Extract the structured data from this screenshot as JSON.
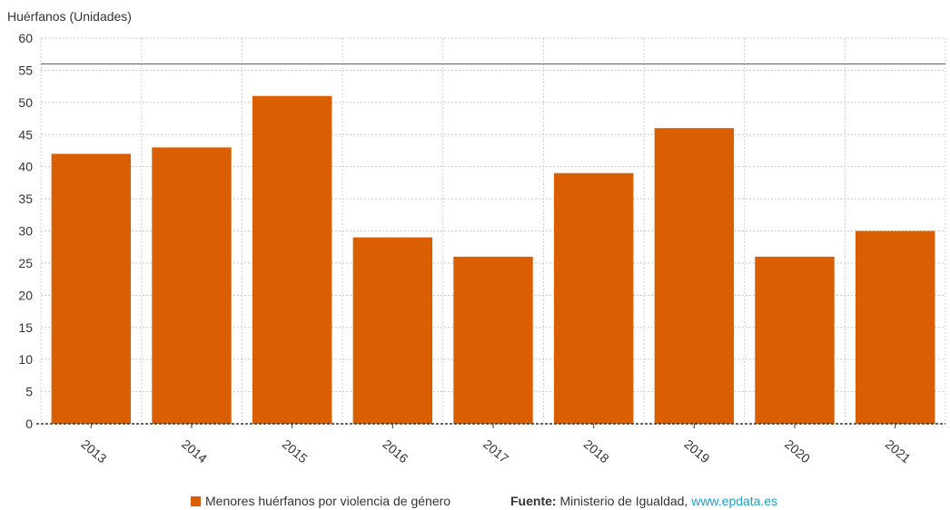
{
  "chart_data": {
    "type": "bar",
    "ylabel": "Huérfanos (Unidades)",
    "categories": [
      "2013",
      "2014",
      "2015",
      "2016",
      "2017",
      "2018",
      "2019",
      "2020",
      "2021"
    ],
    "series": [
      {
        "name": "Menores huérfanos por violencia de género",
        "values": [
          42,
          43,
          51,
          29,
          26,
          39,
          46,
          26,
          30
        ],
        "color": "#d95f02"
      }
    ],
    "ylim": [
      0,
      60
    ],
    "yticks": [
      "0",
      "5",
      "10",
      "15",
      "20",
      "25",
      "30",
      "35",
      "40",
      "45",
      "50",
      "55",
      "60"
    ],
    "reference_line": 56,
    "grid": true,
    "legend_position": "bottom"
  },
  "footer": {
    "source_label": "Fuente:",
    "source_text": " Ministerio de Igualdad, ",
    "source_link": "www.epdata.es"
  }
}
